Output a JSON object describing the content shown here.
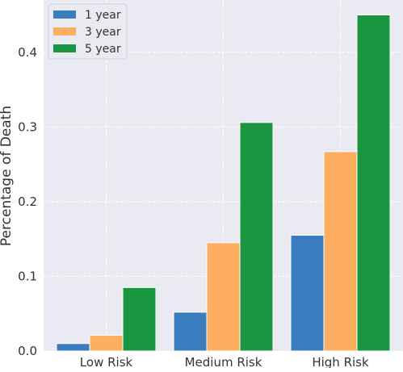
{
  "chart_data": {
    "type": "bar",
    "categories": [
      "Low Risk",
      "Medium Risk",
      "High Risk"
    ],
    "series": [
      {
        "name": "1 year",
        "values": [
          0.01,
          0.052,
          0.155
        ],
        "color": "#3a7dbf"
      },
      {
        "name": "3 year",
        "values": [
          0.021,
          0.145,
          0.267
        ],
        "color": "#fdae61"
      },
      {
        "name": "5 year",
        "values": [
          0.085,
          0.306,
          0.45
        ],
        "color": "#1a9641"
      }
    ],
    "xlabel": "",
    "ylabel": "Percentage of Death",
    "ylim": [
      0,
      0.47
    ],
    "yticks": [
      "0.0",
      "0.1",
      "0.2",
      "0.3",
      "0.4"
    ],
    "grid": true,
    "legend_position": "top-left",
    "background_color": "#eaeaf2"
  }
}
